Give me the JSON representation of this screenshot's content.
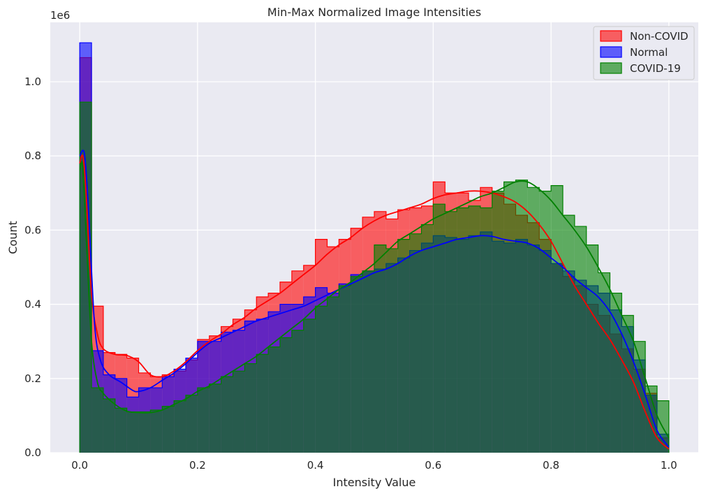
{
  "chart_data": {
    "type": "histogram",
    "title": "Min-Max Normalized Image Intensities",
    "xlabel": "Intensity Value",
    "ylabel": "Count",
    "y_scale_label": "1e6",
    "xlim": [
      -0.05,
      1.05
    ],
    "ylim": [
      0,
      1160000
    ],
    "x_ticks": [
      0.0,
      0.2,
      0.4,
      0.6,
      0.8,
      1.0
    ],
    "x_tick_labels": [
      "0.0",
      "0.2",
      "0.4",
      "0.6",
      "0.8",
      "1.0"
    ],
    "y_ticks": [
      0,
      200000,
      400000,
      600000,
      800000,
      1000000
    ],
    "y_tick_labels": [
      "0.0",
      "0.2",
      "0.4",
      "0.6",
      "0.8",
      "1.0"
    ],
    "grid": true,
    "legend_position": "top-right",
    "bins": 50,
    "bin_range": [
      0.0,
      1.0
    ],
    "series": [
      {
        "name": "Non-COVID",
        "color": "#ff0000",
        "counts": [
          1065000,
          395000,
          270000,
          265000,
          255000,
          215000,
          205000,
          210000,
          220000,
          250000,
          305000,
          315000,
          340000,
          360000,
          385000,
          420000,
          430000,
          460000,
          490000,
          505000,
          575000,
          555000,
          575000,
          605000,
          635000,
          650000,
          630000,
          655000,
          660000,
          665000,
          730000,
          700000,
          700000,
          680000,
          715000,
          700000,
          670000,
          640000,
          620000,
          575000,
          510000,
          475000,
          450000,
          400000,
          370000,
          320000,
          280000,
          225000,
          160000,
          40000
        ],
        "kde": [
          [
            0.0,
            780000
          ],
          [
            0.005,
            800000
          ],
          [
            0.01,
            720000
          ],
          [
            0.02,
            430000
          ],
          [
            0.03,
            320000
          ],
          [
            0.04,
            280000
          ],
          [
            0.06,
            265000
          ],
          [
            0.08,
            262000
          ],
          [
            0.1,
            245000
          ],
          [
            0.12,
            210000
          ],
          [
            0.14,
            205000
          ],
          [
            0.16,
            220000
          ],
          [
            0.18,
            245000
          ],
          [
            0.2,
            275000
          ],
          [
            0.22,
            300000
          ],
          [
            0.24,
            320000
          ],
          [
            0.26,
            345000
          ],
          [
            0.28,
            365000
          ],
          [
            0.3,
            390000
          ],
          [
            0.32,
            410000
          ],
          [
            0.34,
            430000
          ],
          [
            0.36,
            455000
          ],
          [
            0.38,
            480000
          ],
          [
            0.4,
            505000
          ],
          [
            0.42,
            535000
          ],
          [
            0.44,
            560000
          ],
          [
            0.46,
            580000
          ],
          [
            0.48,
            605000
          ],
          [
            0.5,
            625000
          ],
          [
            0.52,
            640000
          ],
          [
            0.54,
            650000
          ],
          [
            0.56,
            660000
          ],
          [
            0.58,
            670000
          ],
          [
            0.6,
            685000
          ],
          [
            0.62,
            695000
          ],
          [
            0.64,
            700000
          ],
          [
            0.66,
            705000
          ],
          [
            0.68,
            705000
          ],
          [
            0.7,
            700000
          ],
          [
            0.72,
            690000
          ],
          [
            0.74,
            675000
          ],
          [
            0.76,
            650000
          ],
          [
            0.78,
            615000
          ],
          [
            0.8,
            570000
          ],
          [
            0.82,
            510000
          ],
          [
            0.84,
            450000
          ],
          [
            0.86,
            400000
          ],
          [
            0.88,
            350000
          ],
          [
            0.9,
            305000
          ],
          [
            0.92,
            250000
          ],
          [
            0.94,
            190000
          ],
          [
            0.96,
            110000
          ],
          [
            0.98,
            40000
          ],
          [
            1.0,
            10000
          ]
        ]
      },
      {
        "name": "Normal",
        "color": "#0000ff",
        "counts": [
          1105000,
          275000,
          210000,
          200000,
          150000,
          175000,
          175000,
          205000,
          225000,
          255000,
          300000,
          300000,
          325000,
          330000,
          355000,
          360000,
          380000,
          400000,
          400000,
          420000,
          445000,
          430000,
          455000,
          480000,
          490000,
          495000,
          510000,
          525000,
          545000,
          565000,
          585000,
          580000,
          575000,
          585000,
          595000,
          570000,
          565000,
          575000,
          560000,
          545000,
          510000,
          490000,
          465000,
          450000,
          430000,
          385000,
          340000,
          250000,
          155000,
          50000
        ],
        "kde": [
          [
            0.0,
            800000
          ],
          [
            0.008,
            805000
          ],
          [
            0.015,
            650000
          ],
          [
            0.025,
            350000
          ],
          [
            0.035,
            250000
          ],
          [
            0.05,
            210000
          ],
          [
            0.07,
            190000
          ],
          [
            0.09,
            168000
          ],
          [
            0.1,
            165000
          ],
          [
            0.12,
            175000
          ],
          [
            0.14,
            195000
          ],
          [
            0.16,
            215000
          ],
          [
            0.18,
            240000
          ],
          [
            0.2,
            270000
          ],
          [
            0.22,
            295000
          ],
          [
            0.24,
            310000
          ],
          [
            0.26,
            325000
          ],
          [
            0.28,
            340000
          ],
          [
            0.3,
            355000
          ],
          [
            0.32,
            365000
          ],
          [
            0.34,
            375000
          ],
          [
            0.36,
            385000
          ],
          [
            0.38,
            395000
          ],
          [
            0.4,
            410000
          ],
          [
            0.42,
            425000
          ],
          [
            0.44,
            440000
          ],
          [
            0.46,
            455000
          ],
          [
            0.48,
            470000
          ],
          [
            0.5,
            485000
          ],
          [
            0.52,
            495000
          ],
          [
            0.54,
            510000
          ],
          [
            0.56,
            530000
          ],
          [
            0.58,
            545000
          ],
          [
            0.6,
            555000
          ],
          [
            0.62,
            565000
          ],
          [
            0.64,
            575000
          ],
          [
            0.66,
            580000
          ],
          [
            0.68,
            585000
          ],
          [
            0.7,
            583000
          ],
          [
            0.72,
            575000
          ],
          [
            0.74,
            570000
          ],
          [
            0.76,
            565000
          ],
          [
            0.78,
            550000
          ],
          [
            0.8,
            525000
          ],
          [
            0.82,
            500000
          ],
          [
            0.84,
            470000
          ],
          [
            0.86,
            445000
          ],
          [
            0.88,
            420000
          ],
          [
            0.9,
            380000
          ],
          [
            0.92,
            320000
          ],
          [
            0.94,
            245000
          ],
          [
            0.96,
            155000
          ],
          [
            0.98,
            60000
          ],
          [
            1.0,
            15000
          ]
        ]
      },
      {
        "name": "COVID-19",
        "color": "#008000",
        "counts": [
          945000,
          175000,
          145000,
          120000,
          110000,
          110000,
          115000,
          125000,
          140000,
          155000,
          175000,
          185000,
          205000,
          220000,
          240000,
          265000,
          285000,
          310000,
          330000,
          360000,
          395000,
          420000,
          450000,
          475000,
          490000,
          560000,
          550000,
          575000,
          590000,
          615000,
          670000,
          650000,
          660000,
          665000,
          660000,
          705000,
          730000,
          735000,
          715000,
          705000,
          720000,
          640000,
          610000,
          560000,
          485000,
          430000,
          370000,
          300000,
          180000,
          140000
        ],
        "kde": [
          [
            0.0,
            760000
          ],
          [
            0.005,
            770000
          ],
          [
            0.012,
            550000
          ],
          [
            0.02,
            300000
          ],
          [
            0.03,
            190000
          ],
          [
            0.04,
            160000
          ],
          [
            0.06,
            130000
          ],
          [
            0.08,
            112000
          ],
          [
            0.1,
            108000
          ],
          [
            0.12,
            108000
          ],
          [
            0.14,
            115000
          ],
          [
            0.16,
            130000
          ],
          [
            0.18,
            145000
          ],
          [
            0.2,
            165000
          ],
          [
            0.22,
            180000
          ],
          [
            0.24,
            200000
          ],
          [
            0.26,
            220000
          ],
          [
            0.28,
            240000
          ],
          [
            0.3,
            260000
          ],
          [
            0.32,
            285000
          ],
          [
            0.34,
            310000
          ],
          [
            0.36,
            335000
          ],
          [
            0.38,
            360000
          ],
          [
            0.4,
            390000
          ],
          [
            0.42,
            415000
          ],
          [
            0.44,
            440000
          ],
          [
            0.46,
            460000
          ],
          [
            0.48,
            485000
          ],
          [
            0.5,
            510000
          ],
          [
            0.52,
            540000
          ],
          [
            0.54,
            570000
          ],
          [
            0.56,
            590000
          ],
          [
            0.58,
            610000
          ],
          [
            0.6,
            630000
          ],
          [
            0.62,
            645000
          ],
          [
            0.64,
            660000
          ],
          [
            0.66,
            675000
          ],
          [
            0.68,
            690000
          ],
          [
            0.7,
            700000
          ],
          [
            0.72,
            715000
          ],
          [
            0.74,
            730000
          ],
          [
            0.76,
            730000
          ],
          [
            0.78,
            710000
          ],
          [
            0.8,
            680000
          ],
          [
            0.82,
            640000
          ],
          [
            0.84,
            600000
          ],
          [
            0.86,
            555000
          ],
          [
            0.88,
            500000
          ],
          [
            0.9,
            440000
          ],
          [
            0.92,
            370000
          ],
          [
            0.94,
            300000
          ],
          [
            0.96,
            200000
          ],
          [
            0.98,
            100000
          ],
          [
            1.0,
            40000
          ]
        ]
      }
    ]
  }
}
